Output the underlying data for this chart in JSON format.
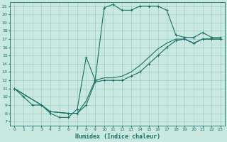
{
  "title": "",
  "xlabel": "Humidex (Indice chaleur)",
  "bg_color": "#c8e8e0",
  "grid_color": "#a0ccc4",
  "line_color": "#1a7068",
  "xlim": [
    -0.5,
    23.5
  ],
  "ylim": [
    6.5,
    21.5
  ],
  "xticks": [
    0,
    1,
    2,
    3,
    4,
    5,
    6,
    7,
    8,
    9,
    10,
    11,
    12,
    13,
    14,
    15,
    16,
    17,
    18,
    19,
    20,
    21,
    22,
    23
  ],
  "yticks": [
    7,
    8,
    9,
    10,
    11,
    12,
    13,
    14,
    15,
    16,
    17,
    18,
    19,
    20,
    21
  ],
  "curve1_x": [
    0,
    1,
    2,
    3,
    4,
    5,
    6,
    7,
    8,
    9,
    10,
    11,
    12,
    13,
    14,
    15,
    16,
    17,
    18,
    19,
    20,
    21,
    22,
    23
  ],
  "curve1_y": [
    11,
    10,
    9,
    9,
    8,
    7.5,
    7.5,
    8.5,
    14.8,
    12,
    20.8,
    21.2,
    20.5,
    20.5,
    21,
    21,
    21,
    20.5,
    17.5,
    17.2,
    17.2,
    17.8,
    17.2,
    17.2
  ],
  "curve2_x": [
    0,
    3,
    4,
    6,
    7,
    8,
    9,
    10,
    11,
    12,
    13,
    14,
    15,
    16,
    17,
    18,
    19,
    20,
    21,
    22,
    23
  ],
  "curve2_y": [
    11,
    9,
    8.2,
    8,
    8,
    9,
    11.8,
    12,
    12,
    12,
    12.5,
    13,
    14,
    15,
    16,
    16.8,
    17,
    16.5,
    17,
    17,
    17
  ],
  "curve3_x": [
    0,
    3,
    4,
    6,
    7,
    8,
    9,
    10,
    11,
    12,
    13,
    14,
    15,
    16,
    17,
    18,
    19,
    20,
    21,
    22,
    23
  ],
  "curve3_y": [
    11,
    9,
    8.2,
    8,
    8,
    9.5,
    12,
    12.3,
    12.3,
    12.5,
    13,
    13.8,
    14.8,
    15.8,
    16.5,
    17,
    17,
    16.5,
    17,
    17,
    17
  ]
}
